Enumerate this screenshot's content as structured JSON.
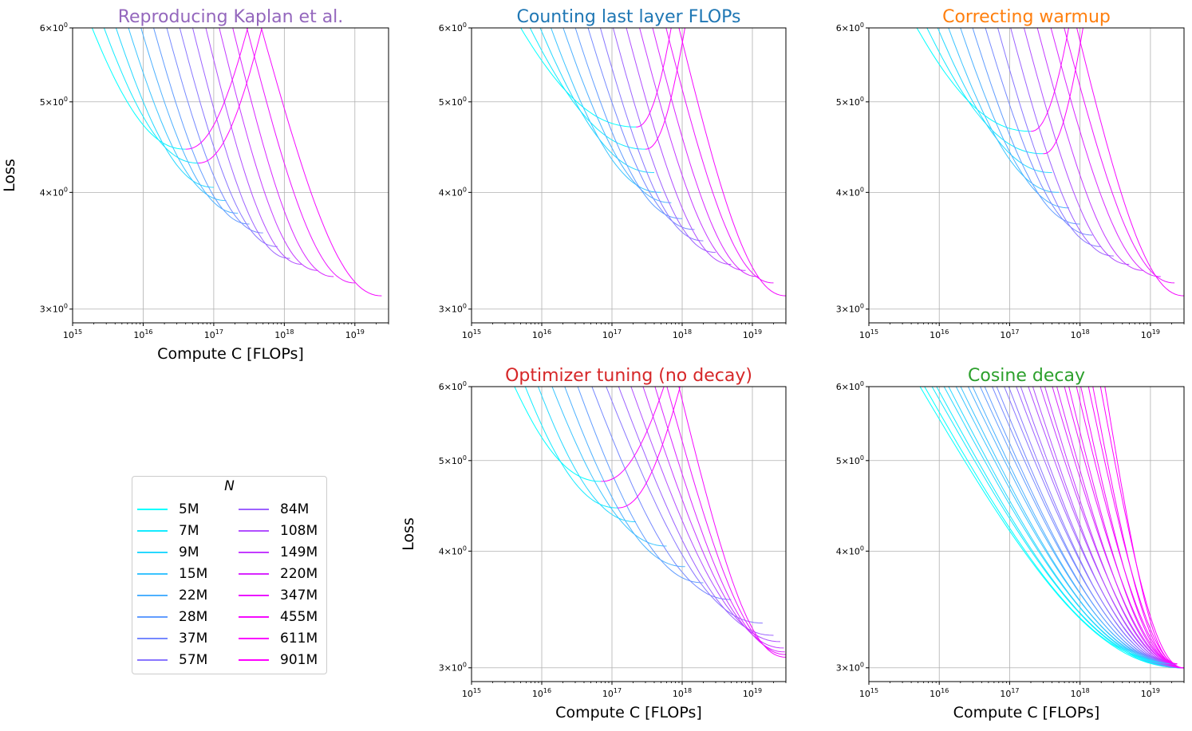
{
  "chart_data": [
    {
      "type": "line",
      "title": "Reproducing Kaplan et al.",
      "title_color": "#9467bd",
      "xlabel": "Compute C [FLOPs]",
      "ylabel": "Loss",
      "x_scale": "log",
      "y_scale": "log",
      "xlim": [
        1000000000000000.0,
        3e+19
      ],
      "ylim": [
        2.9,
        6.0
      ],
      "xticks": [
        "10^15",
        "10^16",
        "10^17",
        "10^18",
        "10^19"
      ],
      "yticks": [
        "3 × 10^0",
        "4 × 10^0",
        "5 × 10^0",
        "6 × 10^0"
      ],
      "grid": true,
      "curve_end_compute": [
        4e+16,
        6e+16,
        1e+17,
        1.5e+17,
        2.2e+17,
        3.2e+17,
        5e+17,
        8e+17,
        1.2e+18,
        1.8e+18,
        3e+18,
        5e+18,
        1e+19,
        2.4e+19
      ],
      "curve_end_loss": [
        4.45,
        4.3,
        4.05,
        3.92,
        3.8,
        3.7,
        3.62,
        3.5,
        3.4,
        3.35,
        3.3,
        3.25,
        3.2,
        3.1
      ]
    },
    {
      "type": "line",
      "title": "Counting last layer FLOPs",
      "title_color": "#1f77b4",
      "xlabel": "",
      "ylabel": "",
      "x_scale": "log",
      "y_scale": "log",
      "xlim": [
        1000000000000000.0,
        3e+19
      ],
      "ylim": [
        2.9,
        6.0
      ],
      "xticks": [
        "10^15",
        "10^16",
        "10^17",
        "10^18",
        "10^19"
      ],
      "yticks": [
        "3 × 10^0",
        "4 × 10^0",
        "5 × 10^0",
        "6 × 10^0"
      ],
      "grid": true,
      "curve_end_compute": [
        2.2e+17,
        3e+17,
        4e+17,
        5e+17,
        7e+17,
        1e+18,
        1.5e+18,
        2e+18,
        3e+18,
        5e+18,
        8e+18,
        1.2e+19,
        2e+19,
        3e+19
      ],
      "curve_end_loss": [
        4.7,
        4.45,
        4.2,
        4.0,
        3.9,
        3.75,
        3.65,
        3.55,
        3.45,
        3.35,
        3.3,
        3.25,
        3.2,
        3.1
      ]
    },
    {
      "type": "line",
      "title": "Correcting warmup",
      "title_color": "#ff7f0e",
      "xlabel": "",
      "ylabel": "",
      "x_scale": "log",
      "y_scale": "log",
      "xlim": [
        1000000000000000.0,
        3e+19
      ],
      "ylim": [
        2.9,
        6.0
      ],
      "xticks": [
        "10^15",
        "10^16",
        "10^17",
        "10^18",
        "10^19"
      ],
      "yticks": [
        "3 × 10^0",
        "4 × 10^0",
        "5 × 10^0",
        "6 × 10^0"
      ],
      "grid": true,
      "curve_end_compute": [
        2e+17,
        3e+17,
        4e+17,
        5e+17,
        7e+17,
        1e+18,
        1.5e+18,
        2e+18,
        3e+18,
        5e+18,
        8e+18,
        1.4e+19,
        2.2e+19,
        3e+19
      ],
      "curve_end_loss": [
        4.65,
        4.4,
        4.2,
        4.0,
        3.85,
        3.7,
        3.6,
        3.5,
        3.42,
        3.35,
        3.3,
        3.25,
        3.2,
        3.1
      ]
    },
    {
      "type": "line",
      "title": "Optimizer tuning (no decay)",
      "title_color": "#d62728",
      "xlabel": "Compute C [FLOPs]",
      "ylabel": "Loss",
      "x_scale": "log",
      "y_scale": "log",
      "xlim": [
        1000000000000000.0,
        3e+19
      ],
      "ylim": [
        2.9,
        6.0
      ],
      "xticks": [
        "10^15",
        "10^16",
        "10^17",
        "10^18",
        "10^19"
      ],
      "yticks": [
        "3 × 10^0",
        "4 × 10^0",
        "5 × 10^0",
        "6 × 10^0"
      ],
      "grid": true,
      "curve_end_compute": [
        7e+16,
        1.2e+17,
        2.2e+17,
        6e+17,
        1.1e+18,
        2e+18,
        5e+18,
        1.4e+19,
        2e+19,
        2.5e+19,
        2.8e+19,
        2.9e+19,
        3e+19,
        3e+19
      ],
      "curve_end_loss": [
        4.75,
        4.45,
        4.3,
        4.05,
        3.85,
        3.7,
        3.55,
        3.35,
        3.25,
        3.2,
        3.15,
        3.12,
        3.1,
        3.08
      ]
    },
    {
      "type": "line",
      "title": "Cosine decay",
      "title_color": "#2ca02c",
      "xlabel": "Compute C [FLOPs]",
      "ylabel": "",
      "x_scale": "log",
      "y_scale": "log",
      "xlim": [
        1000000000000000.0,
        3e+19
      ],
      "ylim": [
        2.9,
        6.0
      ],
      "xticks": [
        "10^15",
        "10^16",
        "10^17",
        "10^18",
        "10^19"
      ],
      "yticks": [
        "3 × 10^0",
        "4 × 10^0",
        "5 × 10^0",
        "6 × 10^0"
      ],
      "grid": true,
      "curve_end_compute": [
        3e+19,
        3e+19,
        3e+19,
        3e+19,
        3e+19,
        3e+19,
        3e+19,
        3e+19,
        3e+19,
        3e+19,
        3e+19,
        3e+19,
        3e+19,
        3e+19
      ],
      "curve_end_loss": [
        3.0,
        3.0,
        3.0,
        3.0,
        3.0,
        3.0,
        3.0,
        3.0,
        3.0,
        3.0,
        3.0,
        3.0,
        3.0,
        3.0
      ]
    }
  ],
  "legend": {
    "title": "N",
    "items": [
      {
        "label": "5M",
        "color": "#00ffff"
      },
      {
        "label": "7M",
        "color": "#14ebff"
      },
      {
        "label": "9M",
        "color": "#27d8ff"
      },
      {
        "label": "15M",
        "color": "#3bc4ff"
      },
      {
        "label": "22M",
        "color": "#4eb1ff"
      },
      {
        "label": "28M",
        "color": "#629dff"
      },
      {
        "label": "37M",
        "color": "#7689ff"
      },
      {
        "label": "57M",
        "color": "#8976ff"
      },
      {
        "label": "84M",
        "color": "#9d62ff"
      },
      {
        "label": "108M",
        "color": "#b14eff"
      },
      {
        "label": "149M",
        "color": "#c43bff"
      },
      {
        "label": "220M",
        "color": "#d827ff"
      },
      {
        "label": "347M",
        "color": "#eb14ff"
      },
      {
        "label": "455M",
        "color": "#f50aff"
      },
      {
        "label": "611M",
        "color": "#fa05ff"
      },
      {
        "label": "901M",
        "color": "#ff00ff"
      }
    ]
  }
}
